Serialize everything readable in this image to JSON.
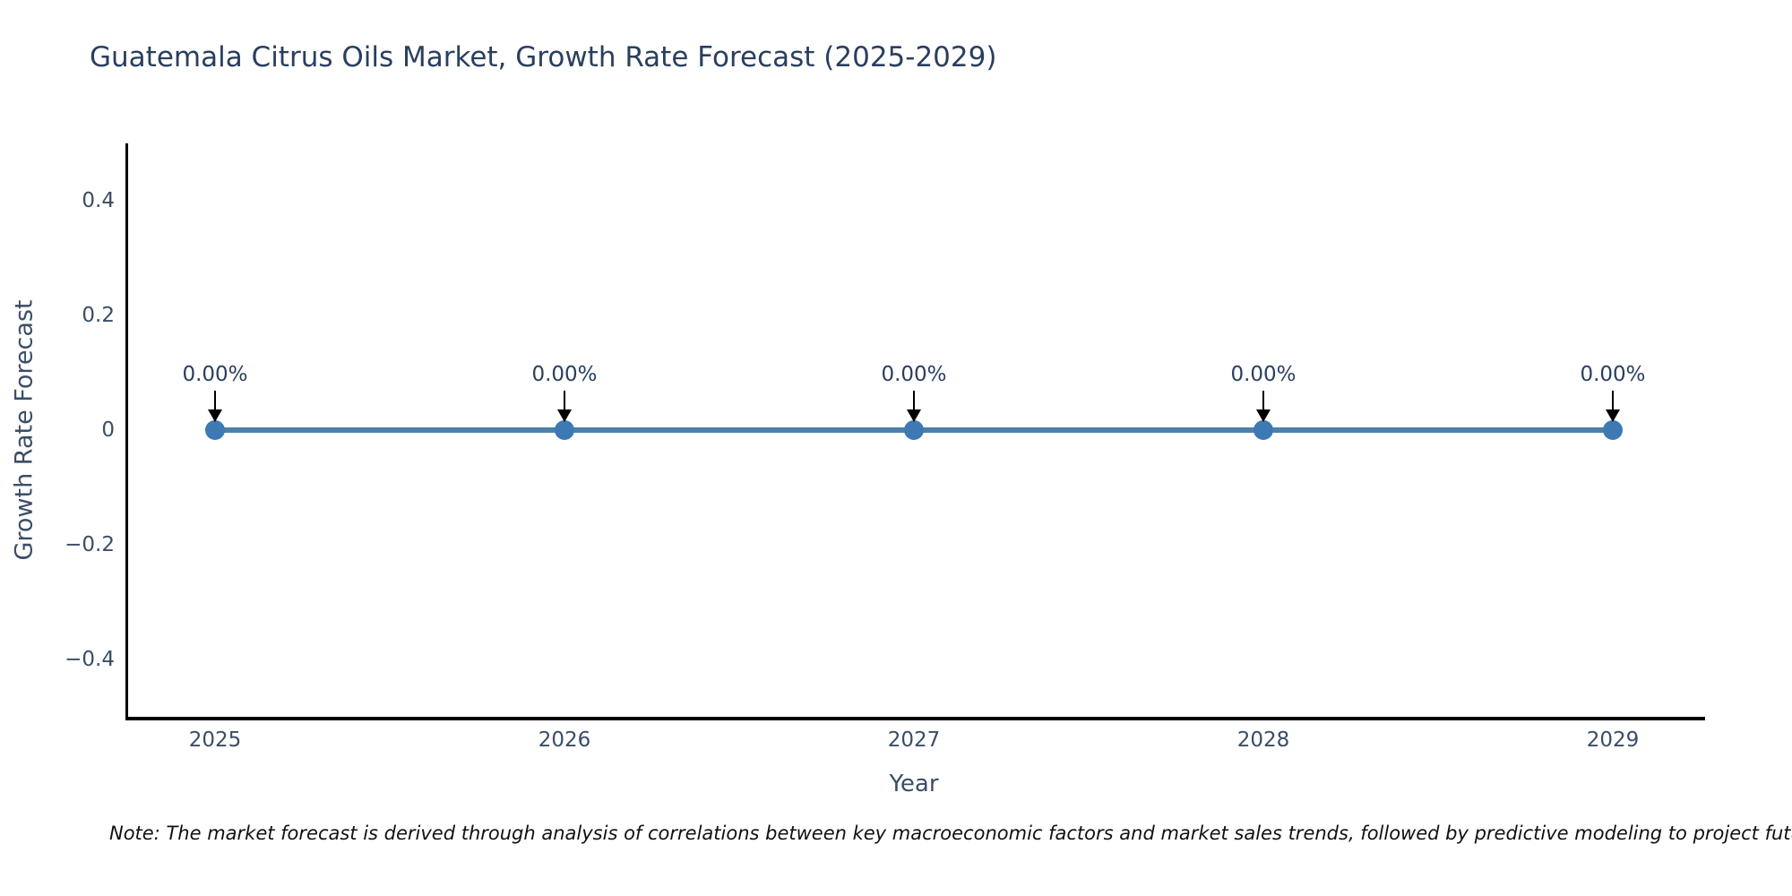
{
  "title": "Guatemala Citrus Oils Market, Growth Rate Forecast (2025-2029)",
  "note": "Note: The market forecast is derived through analysis of correlations between key macroeconomic factors and market sales trends, followed by predictive modeling to project future sa",
  "chart_data": {
    "type": "line",
    "title": "Guatemala Citrus Oils Market, Growth Rate Forecast (2025-2029)",
    "xlabel": "Year",
    "ylabel": "Growth Rate Forecast",
    "x": [
      2025,
      2026,
      2027,
      2028,
      2029
    ],
    "xtick_labels": [
      "2025",
      "2026",
      "2027",
      "2028",
      "2029"
    ],
    "series": [
      {
        "name": "Growth Rate Forecast",
        "values": [
          0,
          0,
          0,
          0,
          0
        ],
        "point_labels": [
          "0.00%",
          "0.00%",
          "0.00%",
          "0.00%",
          "0.00%"
        ]
      }
    ],
    "ylim": [
      -0.5,
      0.5
    ],
    "yticks": [
      0.4,
      0.2,
      0,
      -0.2,
      -0.4
    ],
    "ytick_labels": [
      "0.4",
      "0.2",
      "0",
      "−0.2",
      "−0.4"
    ],
    "grid": false,
    "legend": "none",
    "line_color": "#4c80ab",
    "marker_color": "#3d79b3",
    "arrow_color": "#000000",
    "text_color": "#2a3f5f"
  }
}
